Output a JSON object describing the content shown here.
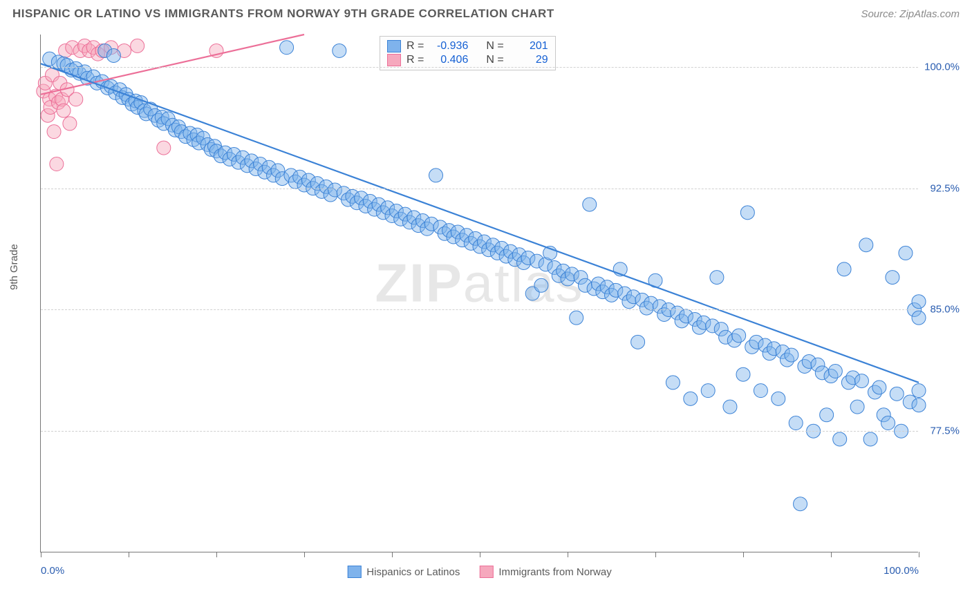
{
  "title": "HISPANIC OR LATINO VS IMMIGRANTS FROM NORWAY 9TH GRADE CORRELATION CHART",
  "source": "Source: ZipAtlas.com",
  "ylabel": "9th Grade",
  "watermark_a": "ZIP",
  "watermark_b": "atlas",
  "chart": {
    "type": "scatter",
    "xlim": [
      0,
      100
    ],
    "ylim": [
      70,
      102
    ],
    "y_ticks": [
      77.5,
      85.0,
      92.5,
      100.0
    ],
    "y_tick_labels": [
      "77.5%",
      "85.0%",
      "92.5%",
      "100.0%"
    ],
    "x_ticks": [
      0,
      10,
      20,
      30,
      40,
      50,
      60,
      70,
      80,
      90,
      100
    ],
    "x_tick_labels_shown": {
      "0": "0.0%",
      "100": "100.0%"
    },
    "background_color": "#ffffff",
    "grid_color": "#d0d0d0",
    "axis_color": "#777777",
    "marker_radius": 10,
    "marker_opacity": 0.45,
    "line_width": 2.2,
    "series": [
      {
        "name": "Hispanics or Latinos",
        "color_fill": "#7fb3ec",
        "color_stroke": "#3b82d6",
        "R": "-0.936",
        "N": "201",
        "trend": {
          "x1": 0,
          "y1": 100.2,
          "x2": 100,
          "y2": 80.5
        },
        "points": [
          [
            1,
            100.5
          ],
          [
            2,
            100.3
          ],
          [
            2.6,
            100.2
          ],
          [
            3,
            100.1
          ],
          [
            3.5,
            99.8
          ],
          [
            4,
            99.9
          ],
          [
            4.4,
            99.6
          ],
          [
            5,
            99.7
          ],
          [
            5.3,
            99.3
          ],
          [
            6,
            99.4
          ],
          [
            6.4,
            99.0
          ],
          [
            7,
            99.1
          ],
          [
            7.3,
            101.0
          ],
          [
            7.6,
            98.7
          ],
          [
            8,
            98.8
          ],
          [
            8.3,
            100.7
          ],
          [
            8.5,
            98.4
          ],
          [
            9,
            98.6
          ],
          [
            9.3,
            98.1
          ],
          [
            9.7,
            98.3
          ],
          [
            10,
            98.0
          ],
          [
            10.4,
            97.7
          ],
          [
            10.8,
            97.9
          ],
          [
            11,
            97.5
          ],
          [
            11.4,
            97.8
          ],
          [
            11.8,
            97.3
          ],
          [
            12,
            97.1
          ],
          [
            12.5,
            97.4
          ],
          [
            13,
            97.0
          ],
          [
            13.4,
            96.7
          ],
          [
            13.8,
            96.9
          ],
          [
            14,
            96.5
          ],
          [
            14.5,
            96.8
          ],
          [
            15,
            96.4
          ],
          [
            15.3,
            96.1
          ],
          [
            15.7,
            96.3
          ],
          [
            16,
            96.0
          ],
          [
            16.5,
            95.7
          ],
          [
            17,
            95.9
          ],
          [
            17.4,
            95.5
          ],
          [
            17.8,
            95.8
          ],
          [
            18,
            95.3
          ],
          [
            18.5,
            95.6
          ],
          [
            19,
            95.2
          ],
          [
            19.4,
            94.9
          ],
          [
            19.8,
            95.1
          ],
          [
            20,
            94.8
          ],
          [
            20.5,
            94.5
          ],
          [
            21,
            94.7
          ],
          [
            21.5,
            94.3
          ],
          [
            22,
            94.6
          ],
          [
            22.5,
            94.1
          ],
          [
            23,
            94.4
          ],
          [
            23.5,
            93.9
          ],
          [
            24,
            94.2
          ],
          [
            24.5,
            93.7
          ],
          [
            25,
            94.0
          ],
          [
            25.5,
            93.5
          ],
          [
            26,
            93.8
          ],
          [
            26.5,
            93.3
          ],
          [
            27,
            93.6
          ],
          [
            27.5,
            93.1
          ],
          [
            28,
            101.2
          ],
          [
            28.5,
            93.3
          ],
          [
            29,
            92.9
          ],
          [
            29.5,
            93.2
          ],
          [
            30,
            92.7
          ],
          [
            30.5,
            93.0
          ],
          [
            31,
            92.5
          ],
          [
            31.5,
            92.8
          ],
          [
            32,
            92.3
          ],
          [
            32.5,
            92.6
          ],
          [
            33,
            92.1
          ],
          [
            33.5,
            92.4
          ],
          [
            34,
            101.0
          ],
          [
            34.5,
            92.2
          ],
          [
            35,
            91.8
          ],
          [
            35.5,
            92.0
          ],
          [
            36,
            91.6
          ],
          [
            36.5,
            91.9
          ],
          [
            37,
            91.4
          ],
          [
            37.5,
            91.7
          ],
          [
            38,
            91.2
          ],
          [
            38.5,
            91.5
          ],
          [
            39,
            91.0
          ],
          [
            39.5,
            91.3
          ],
          [
            40,
            90.8
          ],
          [
            40.5,
            91.1
          ],
          [
            41,
            90.6
          ],
          [
            41.5,
            90.9
          ],
          [
            42,
            90.4
          ],
          [
            42.5,
            90.7
          ],
          [
            43,
            90.2
          ],
          [
            43.5,
            90.5
          ],
          [
            44,
            90.0
          ],
          [
            44.5,
            90.3
          ],
          [
            45,
            93.3
          ],
          [
            45.5,
            90.1
          ],
          [
            46,
            89.7
          ],
          [
            46.5,
            89.9
          ],
          [
            47,
            89.5
          ],
          [
            47.5,
            89.8
          ],
          [
            48,
            89.3
          ],
          [
            48.5,
            89.6
          ],
          [
            49,
            89.1
          ],
          [
            49.5,
            89.4
          ],
          [
            50,
            88.9
          ],
          [
            50.5,
            89.2
          ],
          [
            51,
            88.7
          ],
          [
            51.5,
            89.0
          ],
          [
            52,
            88.5
          ],
          [
            52.5,
            88.8
          ],
          [
            53,
            88.3
          ],
          [
            53.5,
            88.6
          ],
          [
            54,
            88.1
          ],
          [
            54.5,
            88.4
          ],
          [
            55,
            87.9
          ],
          [
            55.5,
            88.2
          ],
          [
            56,
            86.0
          ],
          [
            56.5,
            88.0
          ],
          [
            57,
            86.5
          ],
          [
            57.5,
            87.8
          ],
          [
            58,
            88.5
          ],
          [
            58.5,
            87.6
          ],
          [
            59,
            87.1
          ],
          [
            59.5,
            87.4
          ],
          [
            60,
            86.9
          ],
          [
            60.5,
            87.2
          ],
          [
            61,
            84.5
          ],
          [
            61.5,
            87.0
          ],
          [
            62,
            86.5
          ],
          [
            62.5,
            91.5
          ],
          [
            63,
            86.3
          ],
          [
            63.5,
            86.6
          ],
          [
            64,
            86.1
          ],
          [
            64.5,
            86.4
          ],
          [
            65,
            85.9
          ],
          [
            65.5,
            86.2
          ],
          [
            66,
            87.5
          ],
          [
            66.5,
            86.0
          ],
          [
            67,
            85.5
          ],
          [
            67.5,
            85.8
          ],
          [
            68,
            83.0
          ],
          [
            68.5,
            85.6
          ],
          [
            69,
            85.1
          ],
          [
            69.5,
            85.4
          ],
          [
            70,
            86.8
          ],
          [
            70.5,
            85.2
          ],
          [
            71,
            84.7
          ],
          [
            71.5,
            85.0
          ],
          [
            72,
            80.5
          ],
          [
            72.5,
            84.8
          ],
          [
            73,
            84.3
          ],
          [
            73.5,
            84.6
          ],
          [
            74,
            79.5
          ],
          [
            74.5,
            84.4
          ],
          [
            75,
            83.9
          ],
          [
            75.5,
            84.2
          ],
          [
            76,
            80.0
          ],
          [
            76.5,
            84.0
          ],
          [
            77,
            87.0
          ],
          [
            77.5,
            83.8
          ],
          [
            78,
            83.3
          ],
          [
            78.5,
            79.0
          ],
          [
            79,
            83.1
          ],
          [
            79.5,
            83.4
          ],
          [
            80,
            81.0
          ],
          [
            80.5,
            91.0
          ],
          [
            81,
            82.7
          ],
          [
            81.5,
            83.0
          ],
          [
            82,
            80.0
          ],
          [
            82.5,
            82.8
          ],
          [
            83,
            82.3
          ],
          [
            83.5,
            82.6
          ],
          [
            84,
            79.5
          ],
          [
            84.5,
            82.4
          ],
          [
            85,
            81.9
          ],
          [
            85.5,
            82.2
          ],
          [
            86,
            78.0
          ],
          [
            86.5,
            73.0
          ],
          [
            87,
            81.5
          ],
          [
            87.5,
            81.8
          ],
          [
            88,
            77.5
          ],
          [
            88.5,
            81.6
          ],
          [
            89,
            81.1
          ],
          [
            89.5,
            78.5
          ],
          [
            90,
            80.9
          ],
          [
            90.5,
            81.2
          ],
          [
            91,
            77.0
          ],
          [
            91.5,
            87.5
          ],
          [
            92,
            80.5
          ],
          [
            92.5,
            80.8
          ],
          [
            93,
            79.0
          ],
          [
            93.5,
            80.6
          ],
          [
            94,
            89.0
          ],
          [
            94.5,
            77.0
          ],
          [
            95,
            79.9
          ],
          [
            95.5,
            80.2
          ],
          [
            96,
            78.5
          ],
          [
            96.5,
            78.0
          ],
          [
            97,
            87.0
          ],
          [
            97.5,
            79.8
          ],
          [
            98,
            77.5
          ],
          [
            98.5,
            88.5
          ],
          [
            99,
            79.3
          ],
          [
            99.5,
            85.0
          ],
          [
            100,
            79.1
          ],
          [
            100,
            85.5
          ],
          [
            100,
            84.5
          ],
          [
            100,
            80.0
          ]
        ]
      },
      {
        "name": "Immigrants from Norway",
        "color_fill": "#f6a8bd",
        "color_stroke": "#ec6f98",
        "R": "0.406",
        "N": "29",
        "trend": {
          "x1": 0,
          "y1": 98.3,
          "x2": 30,
          "y2": 102.0
        },
        "points": [
          [
            0.3,
            98.5
          ],
          [
            0.5,
            99.0
          ],
          [
            0.8,
            97.0
          ],
          [
            1.0,
            98.0
          ],
          [
            1.1,
            97.5
          ],
          [
            1.3,
            99.5
          ],
          [
            1.5,
            96.0
          ],
          [
            1.7,
            98.2
          ],
          [
            1.8,
            94.0
          ],
          [
            2.0,
            97.8
          ],
          [
            2.2,
            99.0
          ],
          [
            2.4,
            98.0
          ],
          [
            2.6,
            97.3
          ],
          [
            2.8,
            101.0
          ],
          [
            3.0,
            98.6
          ],
          [
            3.3,
            96.5
          ],
          [
            3.6,
            101.2
          ],
          [
            4.0,
            98.0
          ],
          [
            4.5,
            101.0
          ],
          [
            5.0,
            101.3
          ],
          [
            5.5,
            101.0
          ],
          [
            6.0,
            101.2
          ],
          [
            6.5,
            100.8
          ],
          [
            7.0,
            101.0
          ],
          [
            8.0,
            101.2
          ],
          [
            9.5,
            101.0
          ],
          [
            11.0,
            101.3
          ],
          [
            14.0,
            95.0
          ],
          [
            20.0,
            101.0
          ]
        ]
      }
    ]
  },
  "stats_legend": {
    "r_label": "R =",
    "n_label": "N ="
  },
  "bottom_legend": {
    "series1": "Hispanics or Latinos",
    "series2": "Immigrants from Norway"
  }
}
